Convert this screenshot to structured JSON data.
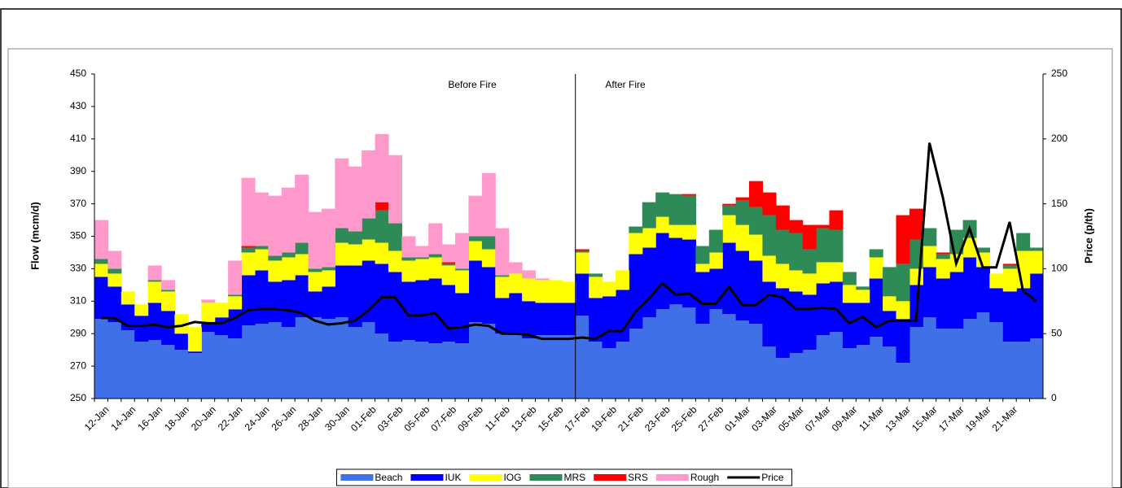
{
  "chart_data": {
    "type": "stacked-step-area",
    "categories": [
      "12-Jan",
      null,
      "14-Jan",
      null,
      "16-Jan",
      null,
      "18-Jan",
      null,
      "20-Jan",
      null,
      "22-Jan",
      null,
      "24-Jan",
      null,
      "26-Jan",
      null,
      "28-Jan",
      null,
      "30-Jan",
      null,
      "01-Feb",
      null,
      "03-Feb",
      null,
      "05-Feb",
      null,
      "07-Feb",
      null,
      "09-Feb",
      null,
      "11-Feb",
      null,
      "13-Feb",
      null,
      "15-Feb",
      null,
      "17-Feb",
      null,
      "19-Feb",
      null,
      "21-Feb",
      null,
      "23-Feb",
      null,
      "25-Feb",
      null,
      "27-Feb",
      null,
      "01-Mar",
      null,
      "03-Mar",
      null,
      "05-Mar",
      null,
      "07-Mar",
      null,
      "09-Mar",
      null,
      "11-Mar",
      null,
      "13-Mar",
      null,
      "15-Mar",
      null,
      "17-Mar",
      null,
      "19-Mar",
      null,
      "21-Mar",
      null,
      null
    ],
    "y_label": "Flow (mcm/d)",
    "y2_label": "Price (p/th)",
    "annotations": [
      {
        "text": "Before Fire"
      },
      {
        "text": "After Fire"
      }
    ],
    "ylim": [
      250,
      450
    ],
    "yticks": [
      250,
      270,
      290,
      310,
      330,
      350,
      370,
      390,
      410,
      430,
      450
    ],
    "y2lim": [
      0,
      250
    ],
    "y2ticks": [
      0,
      50,
      100,
      150,
      200,
      250
    ],
    "series": [
      {
        "name": "Beach",
        "color": "#4070e8",
        "values": [
          299,
          297,
          292,
          285,
          286,
          283,
          280,
          278,
          291,
          289,
          287,
          295,
          296,
          297,
          294,
          300,
          300,
          299,
          300,
          294,
          297,
          290,
          285,
          286,
          285,
          284,
          285,
          284,
          297,
          296,
          290,
          289,
          287,
          289,
          289,
          289,
          301,
          285,
          281,
          285,
          293,
          300,
          305,
          308,
          306,
          296,
          305,
          302,
          298,
          296,
          282,
          275,
          278,
          280,
          289,
          291,
          281,
          283,
          288,
          282,
          272,
          294,
          300,
          293,
          293,
          299,
          303,
          297,
          285,
          285,
          287
        ]
      },
      {
        "name": "IUK",
        "color": "#0000ff",
        "values": [
          26,
          22,
          16,
          16,
          23,
          21,
          10,
          1,
          6,
          11,
          18,
          31,
          33,
          25,
          29,
          26,
          16,
          20,
          32,
          38,
          38,
          43,
          43,
          36,
          38,
          40,
          35,
          31,
          38,
          35,
          22,
          26,
          23,
          20,
          20,
          20,
          26,
          27,
          32,
          32,
          46,
          43,
          47,
          41,
          42,
          32,
          25,
          44,
          43,
          39,
          40,
          43,
          38,
          34,
          32,
          31,
          28,
          26,
          36,
          22,
          27,
          26,
          31,
          31,
          35,
          38,
          28,
          21,
          31,
          33,
          40
        ]
      },
      {
        "name": "IOG",
        "color": "#ffff00",
        "values": [
          8,
          8,
          8,
          7,
          13,
          12,
          12,
          15,
          12,
          9,
          8,
          14,
          13,
          13,
          14,
          13,
          12,
          10,
          14,
          13,
          13,
          13,
          13,
          13,
          13,
          13,
          12,
          14,
          12,
          11,
          13,
          12,
          14,
          14,
          14,
          13,
          13,
          13,
          9,
          12,
          13,
          12,
          10,
          8,
          9,
          5,
          10,
          17,
          16,
          16,
          16,
          15,
          13,
          13,
          13,
          12,
          11,
          8,
          13,
          9,
          11,
          10,
          13,
          12,
          11,
          12,
          9,
          9,
          14,
          23,
          14
        ]
      },
      {
        "name": "MRS",
        "color": "#2e8b57",
        "values": [
          3,
          3,
          0,
          0,
          1,
          1,
          0,
          0,
          0,
          0,
          1,
          3,
          2,
          3,
          3,
          7,
          2,
          2,
          9,
          8,
          13,
          20,
          17,
          2,
          1,
          2,
          1,
          1,
          3,
          8,
          1,
          0,
          0,
          0,
          0,
          0,
          1,
          2,
          0,
          0,
          4,
          16,
          15,
          19,
          18,
          11,
          14,
          6,
          15,
          17,
          25,
          21,
          23,
          15,
          21,
          20,
          8,
          2,
          5,
          18,
          23,
          18,
          11,
          3,
          15,
          11,
          3,
          0,
          2,
          11,
          2
        ]
      },
      {
        "name": "SRS",
        "color": "#ff0000",
        "values": [
          0,
          0,
          0,
          0,
          0,
          0,
          0,
          0,
          0,
          0,
          0,
          1,
          0,
          0,
          0,
          0,
          0,
          0,
          0,
          0,
          0,
          5,
          0,
          0,
          0,
          0,
          1,
          0,
          0,
          0,
          0,
          0,
          0,
          0,
          0,
          0,
          1,
          0,
          0,
          0,
          0,
          0,
          0,
          0,
          1,
          0,
          0,
          1,
          2,
          16,
          14,
          15,
          8,
          15,
          2,
          12,
          0,
          0,
          0,
          0,
          30,
          19,
          0,
          1,
          0,
          0,
          0,
          0,
          1,
          0,
          0
        ]
      },
      {
        "name": "Rough",
        "color": "#ff99cc",
        "values": [
          24,
          11,
          0,
          0,
          9,
          6,
          0,
          0,
          2,
          0,
          21,
          42,
          33,
          37,
          40,
          42,
          35,
          36,
          43,
          40,
          42,
          42,
          42,
          13,
          7,
          19,
          11,
          22,
          25,
          39,
          29,
          7,
          5,
          1,
          0,
          0,
          0,
          0,
          0,
          0,
          0,
          0,
          0,
          0,
          0,
          0,
          0,
          0,
          0,
          0,
          0,
          0,
          0,
          0,
          0,
          0,
          0,
          0,
          0,
          0,
          0,
          0,
          0,
          0,
          0,
          0,
          0,
          0,
          0,
          0,
          0
        ]
      },
      {
        "name": "Price",
        "color": "#000000",
        "axis": "y2",
        "values": [
          62,
          62,
          56,
          56,
          57,
          55,
          56,
          59,
          58,
          58,
          62,
          68,
          69,
          69,
          68,
          66,
          60,
          57,
          58,
          60,
          68,
          78,
          78,
          64,
          64,
          66,
          54,
          55,
          57,
          56,
          50,
          50,
          49,
          46,
          46,
          46,
          47,
          46,
          52,
          52,
          67,
          77,
          89,
          80,
          81,
          73,
          73,
          86,
          72,
          72,
          80,
          78,
          69,
          69,
          70,
          69,
          58,
          63,
          55,
          60,
          60,
          60,
          197,
          155,
          104,
          131,
          101,
          101,
          136,
          83,
          75
        ]
      }
    ]
  }
}
